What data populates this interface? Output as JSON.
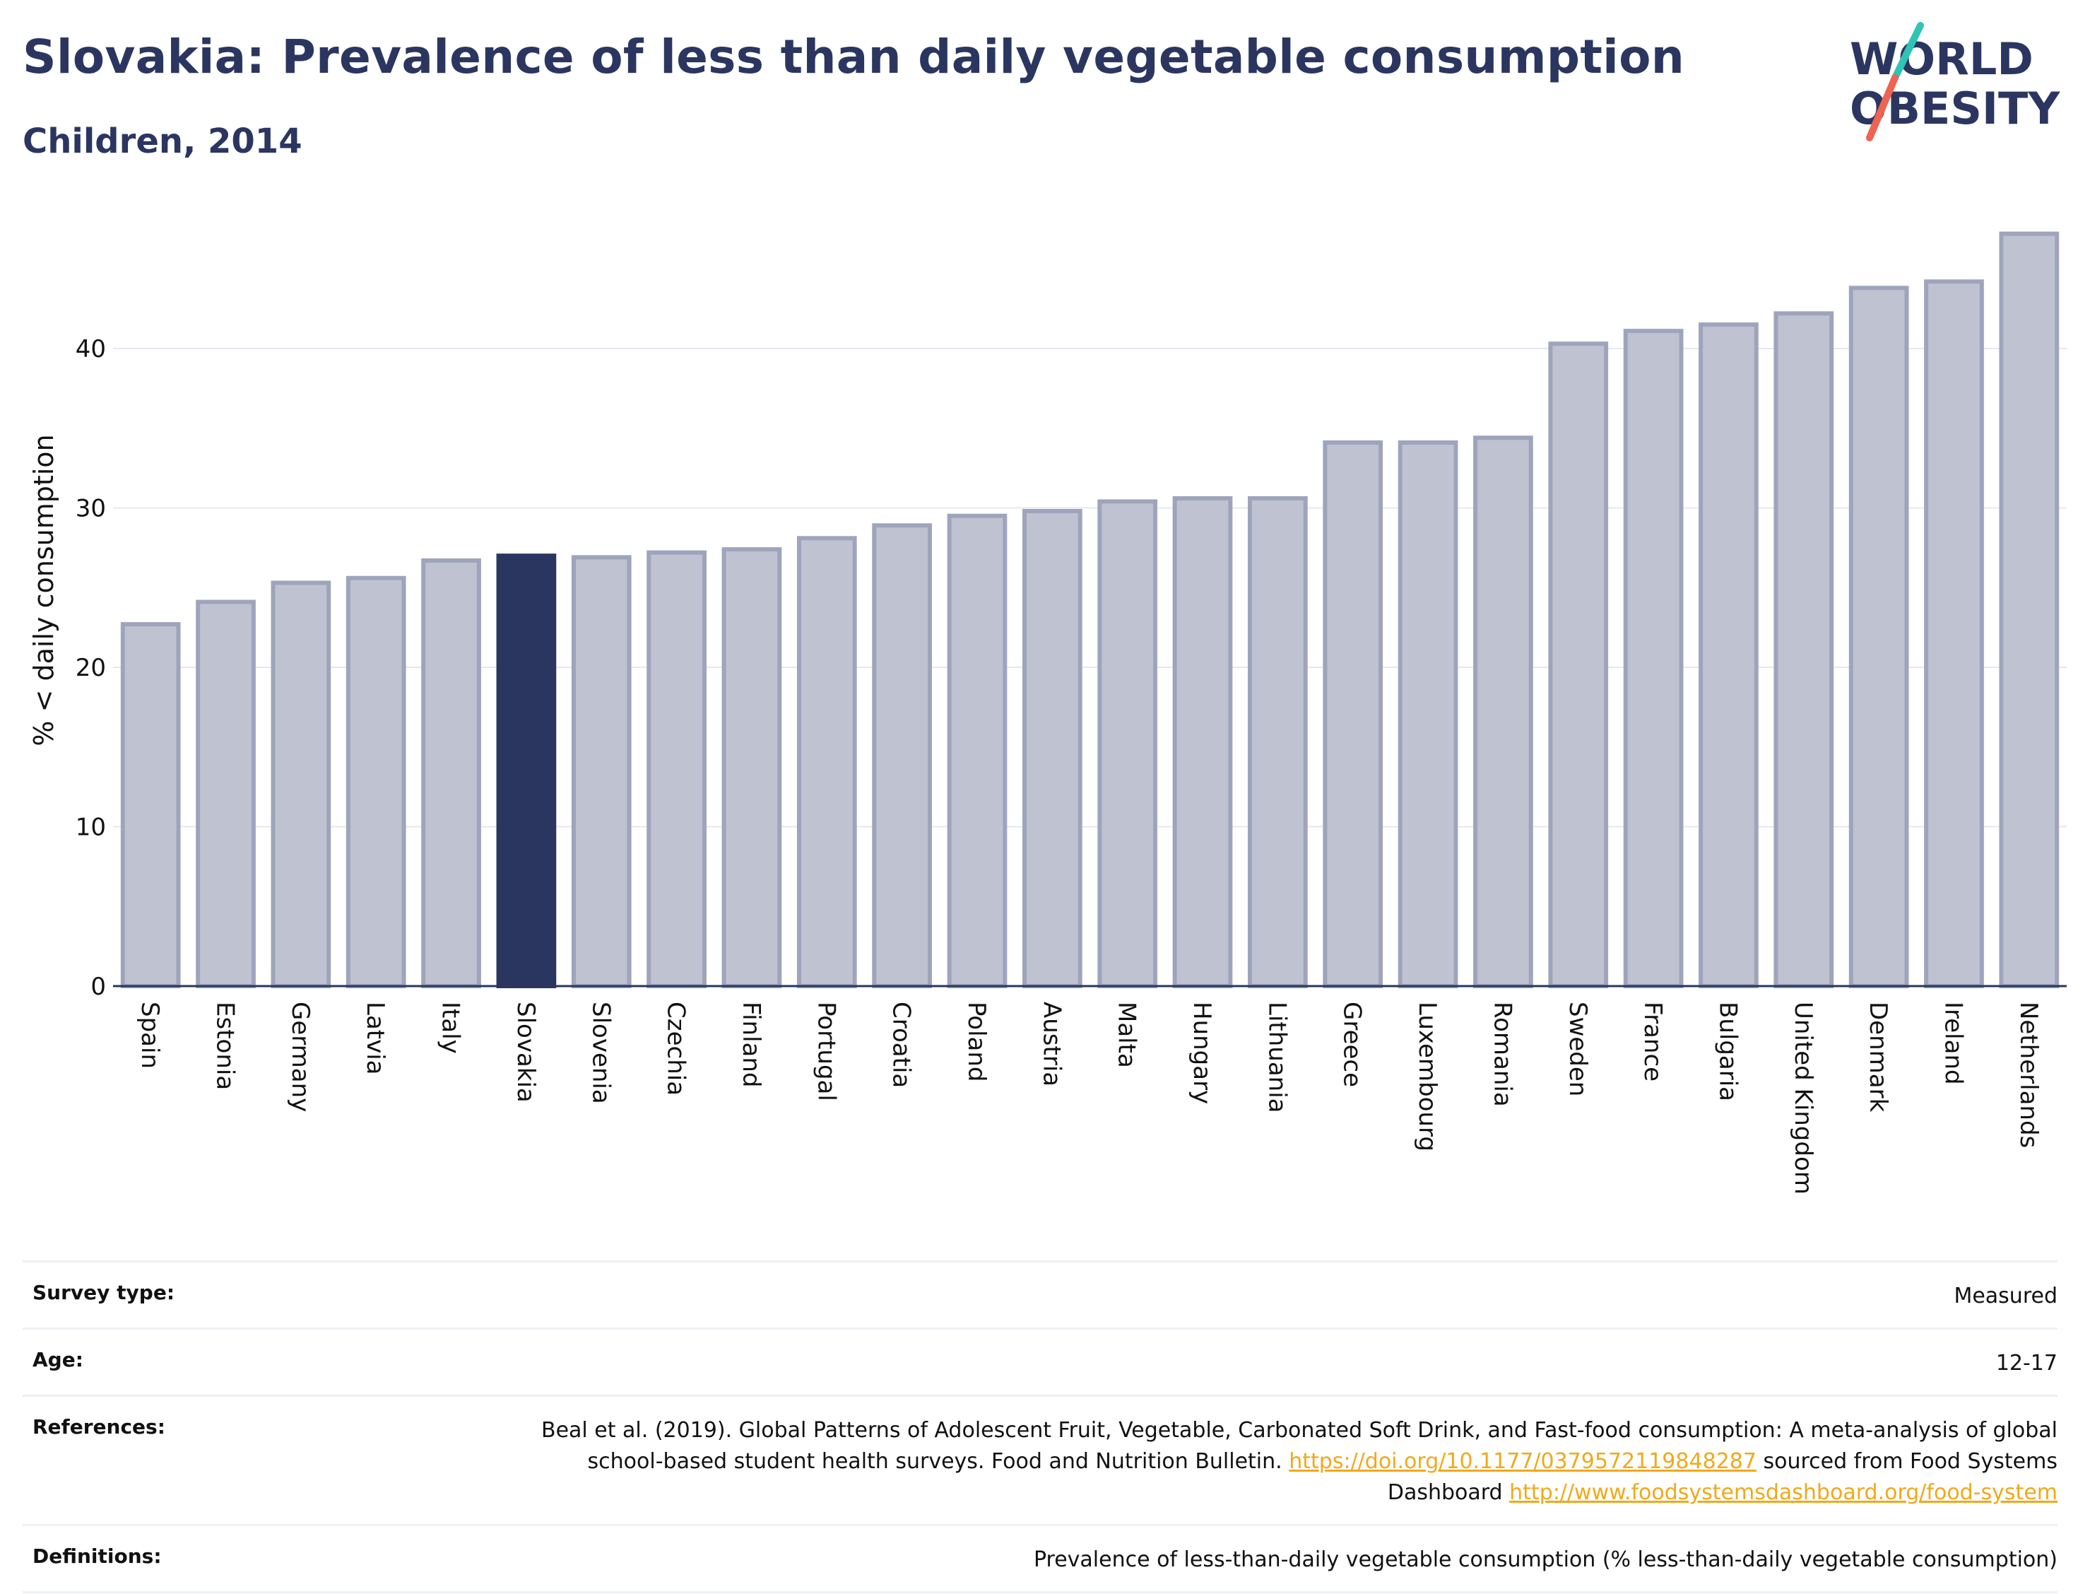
{
  "title": "Slovakia: Prevalence of less than daily vegetable consumption",
  "subtitle": "Children, 2014",
  "logo": {
    "line1": "WORLD",
    "line2": "OBESITY"
  },
  "colors": {
    "title": "#2b3660",
    "bar_default": "#bfc2d0",
    "bar_default_edge": "#9ea4bb",
    "bar_highlight": "#2a365f",
    "grid": "#e6e8ee",
    "link": "#f0a91b",
    "logo_teal": "#2ec4b6",
    "logo_coral": "#ee6352"
  },
  "chart_data": {
    "type": "bar",
    "title": "",
    "xlabel": "",
    "ylabel": "% < daily consumption",
    "ylim": [
      0,
      49
    ],
    "yticks": [
      0,
      10,
      20,
      30,
      40
    ],
    "grid": true,
    "highlight": "Slovakia",
    "categories": [
      "Spain",
      "Estonia",
      "Germany",
      "Latvia",
      "Italy",
      "Slovakia",
      "Slovenia",
      "Czechia",
      "Finland",
      "Portugal",
      "Croatia",
      "Poland",
      "Austria",
      "Malta",
      "Hungary",
      "Lithuania",
      "Greece",
      "Luxembourg",
      "Romania",
      "Sweden",
      "France",
      "Bulgaria",
      "United Kingdom",
      "Denmark",
      "Ireland",
      "Netherlands"
    ],
    "values": [
      22.7,
      24.1,
      25.3,
      25.6,
      26.7,
      27.0,
      26.9,
      27.2,
      27.4,
      28.1,
      28.9,
      29.5,
      29.8,
      30.4,
      30.6,
      30.6,
      34.1,
      34.1,
      34.4,
      40.3,
      41.1,
      41.5,
      42.2,
      43.8,
      44.2,
      47.2
    ]
  },
  "meta": {
    "survey_type": {
      "label": "Survey type:",
      "value": "Measured"
    },
    "age": {
      "label": "Age:",
      "value": "12-17"
    },
    "references": {
      "label": "References:",
      "text1": "Beal et al. (2019). Global Patterns of Adolescent Fruit, Vegetable, Carbonated Soft Drink, and Fast-food consumption: A meta-analysis of global school-based student health surveys. Food and Nutrition Bulletin.",
      "link1": "https://doi.org/10.1177/0379572119848287",
      "text2": "sourced from Food Systems Dashboard",
      "link2": "http://www.foodsystemsdashboard.org/food-system"
    },
    "definitions": {
      "label": "Definitions:",
      "value": "Prevalence of less-than-daily vegetable consumption (% less-than-daily vegetable consumption)"
    }
  }
}
